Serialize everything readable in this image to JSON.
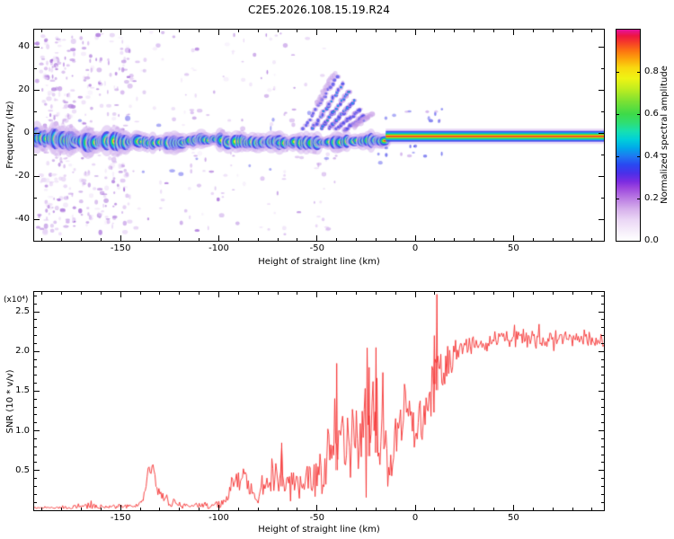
{
  "title": "C2E5.2026.108.15.19.R24",
  "chart_data": [
    {
      "type": "heatmap",
      "title": "C2E5.2026.108.15.19.R24",
      "xlabel": "Height of straight line (km)",
      "ylabel": "Frequency (Hz)",
      "xlim": [
        -194,
        96
      ],
      "ylim": [
        -50,
        48
      ],
      "x_ticks": [
        -150,
        -100,
        -50,
        0,
        50
      ],
      "y_ticks": [
        -40,
        -20,
        0,
        20,
        40
      ],
      "grid": false,
      "colorbar": {
        "label": "Normalized spectral amplitude",
        "ticks": [
          0,
          0.2,
          0.4,
          0.6,
          0.8
        ],
        "range": [
          0,
          1
        ],
        "stops": [
          [
            0,
            "#ffffff"
          ],
          [
            0.05,
            "#f5ecfa"
          ],
          [
            0.1,
            "#ead6f5"
          ],
          [
            0.15,
            "#d6b0eb"
          ],
          [
            0.2,
            "#bb7ce3"
          ],
          [
            0.25,
            "#9c46de"
          ],
          [
            0.28,
            "#7c2ce1"
          ],
          [
            0.32,
            "#4a30e9"
          ],
          [
            0.36,
            "#2948f1"
          ],
          [
            0.4,
            "#1e79f1"
          ],
          [
            0.44,
            "#00a9e9"
          ],
          [
            0.48,
            "#00d0d9"
          ],
          [
            0.52,
            "#17e0af"
          ],
          [
            0.56,
            "#30de71"
          ],
          [
            0.6,
            "#3dda49"
          ],
          [
            0.66,
            "#7be133"
          ],
          [
            0.72,
            "#c1ed1f"
          ],
          [
            0.77,
            "#eff413"
          ],
          [
            0.82,
            "#f9d80f"
          ],
          [
            0.86,
            "#fca60b"
          ],
          [
            0.9,
            "#fc7311"
          ],
          [
            0.94,
            "#f53b29"
          ],
          [
            0.97,
            "#ed1541"
          ],
          [
            1,
            "#e4129d"
          ]
        ]
      },
      "features": {
        "echo_band": {
          "center_hz": -2,
          "clean_center_hz": -1.5,
          "noisy_x_range": [
            -194,
            -15
          ],
          "clean_x_range": [
            -15,
            96
          ],
          "halfwidth_hz_noisy": 5,
          "halfwidth_hz_clean": 3.5,
          "wiggle_hz": 2.5
        },
        "noise_columns_km": [
          -189,
          -187,
          -184,
          -181,
          -178,
          -175,
          -169,
          -166,
          -161,
          -157,
          -153,
          -149,
          -146
        ],
        "sparse_noise_x_range": [
          -194,
          -40
        ],
        "side_speckle_x_range": [
          -30,
          14
        ],
        "streaks": [
          {
            "x0": -57,
            "f0": 2,
            "x1": -40,
            "f1": 26,
            "s": 0.5
          },
          {
            "x0": -52,
            "f0": 2,
            "x1": -37,
            "f1": 23,
            "s": 0.7
          },
          {
            "x0": -48,
            "f0": 2,
            "x1": -34,
            "f1": 19,
            "s": 0.85
          },
          {
            "x0": -44,
            "f0": 2,
            "x1": -31,
            "f1": 15,
            "s": 0.7
          },
          {
            "x0": -40,
            "f0": 2,
            "x1": -28,
            "f1": 11,
            "s": 0.6
          },
          {
            "x0": -36,
            "f0": 1,
            "x1": -26,
            "f1": 8,
            "s": 0.5
          },
          {
            "x0": -50,
            "f0": 14,
            "x1": -41,
            "f1": 28,
            "s": 0.35
          },
          {
            "x0": -31,
            "f0": 3,
            "x1": -22,
            "f1": 9,
            "s": 0.4
          }
        ]
      }
    },
    {
      "type": "line",
      "xlabel": "Height of straight line (km)",
      "ylabel": "SNR (10 * v/v)",
      "y_multiplier": "(x10⁴)",
      "xlim": [
        -194,
        96
      ],
      "ylim": [
        0,
        2.75
      ],
      "x_ticks": [
        -150,
        -100,
        -50,
        0,
        50
      ],
      "y_ticks": [
        0.5,
        1.0,
        1.5,
        2.0,
        2.5
      ],
      "line_color": "#f53131",
      "envelope": [
        [
          -194,
          0.03,
          0.02
        ],
        [
          -180,
          0.03,
          0.02
        ],
        [
          -172,
          0.04,
          0.03
        ],
        [
          -166,
          0.06,
          0.05
        ],
        [
          -160,
          0.04,
          0.03
        ],
        [
          -152,
          0.05,
          0.03
        ],
        [
          -143,
          0.05,
          0.03
        ],
        [
          -139,
          0.1,
          0.06
        ],
        [
          -136,
          0.45,
          0.12
        ],
        [
          -134,
          0.58,
          0.1
        ],
        [
          -131,
          0.3,
          0.12
        ],
        [
          -128,
          0.14,
          0.07
        ],
        [
          -124,
          0.08,
          0.05
        ],
        [
          -115,
          0.06,
          0.04
        ],
        [
          -105,
          0.07,
          0.05
        ],
        [
          -97,
          0.09,
          0.06
        ],
        [
          -93,
          0.35,
          0.18
        ],
        [
          -90,
          0.3,
          0.2
        ],
        [
          -87,
          0.45,
          0.18
        ],
        [
          -84,
          0.28,
          0.15
        ],
        [
          -80,
          0.2,
          0.12
        ],
        [
          -76,
          0.28,
          0.16
        ],
        [
          -72,
          0.4,
          0.25
        ],
        [
          -68,
          0.45,
          0.3
        ],
        [
          -64,
          0.32,
          0.2
        ],
        [
          -59,
          0.38,
          0.22
        ],
        [
          -54,
          0.45,
          0.3
        ],
        [
          -49,
          0.55,
          0.35
        ],
        [
          -44,
          0.65,
          0.45
        ],
        [
          -39,
          0.8,
          0.55
        ],
        [
          -34,
          0.85,
          0.6
        ],
        [
          -29,
          0.95,
          0.65
        ],
        [
          -24,
          1.05,
          0.75
        ],
        [
          -20,
          1.15,
          0.85
        ],
        [
          -17,
          1.0,
          0.6
        ],
        [
          -14,
          0.8,
          0.5
        ],
        [
          -12,
          0.45,
          0.3
        ],
        [
          -10,
          0.85,
          0.45
        ],
        [
          -7,
          1.15,
          0.45
        ],
        [
          -4,
          1.25,
          0.4
        ],
        [
          -1,
          1.25,
          0.4
        ],
        [
          2,
          1.15,
          0.35
        ],
        [
          5,
          1.2,
          0.3
        ],
        [
          8,
          1.5,
          0.5
        ],
        [
          10,
          1.9,
          0.5
        ],
        [
          12,
          1.55,
          0.35
        ],
        [
          15,
          1.7,
          0.3
        ],
        [
          18,
          1.9,
          0.22
        ],
        [
          22,
          2.0,
          0.15
        ],
        [
          27,
          2.08,
          0.13
        ],
        [
          33,
          2.12,
          0.12
        ],
        [
          40,
          2.12,
          0.12
        ],
        [
          48,
          2.18,
          0.12
        ],
        [
          56,
          2.2,
          0.13
        ],
        [
          64,
          2.16,
          0.13
        ],
        [
          72,
          2.14,
          0.12
        ],
        [
          80,
          2.18,
          0.1
        ],
        [
          88,
          2.14,
          0.1
        ],
        [
          96,
          2.12,
          0.08
        ]
      ],
      "spikes": [
        [
          11,
          2.72
        ],
        [
          9.7,
          2.2
        ],
        [
          -20,
          2.05
        ],
        [
          -23.5,
          1.8
        ],
        [
          -40,
          1.85
        ],
        [
          -68,
          0.85
        ]
      ]
    }
  ]
}
